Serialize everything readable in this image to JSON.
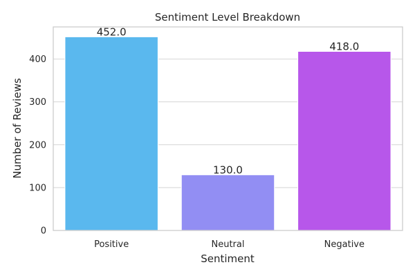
{
  "chart_data": {
    "type": "bar",
    "title": "Sentiment Level Breakdown",
    "xlabel": "Sentiment",
    "ylabel": "Number of Reviews",
    "categories": [
      "Positive",
      "Neutral",
      "Negative"
    ],
    "values": [
      452,
      130,
      418
    ],
    "data_labels": [
      "452.0",
      "130.0",
      "418.0"
    ],
    "colors": [
      "#5ab8ee",
      "#928ef3",
      "#b757ea"
    ],
    "ylim": [
      0,
      475
    ],
    "yticks": [
      0,
      100,
      200,
      300,
      400
    ],
    "grid": true,
    "legend": "none"
  }
}
